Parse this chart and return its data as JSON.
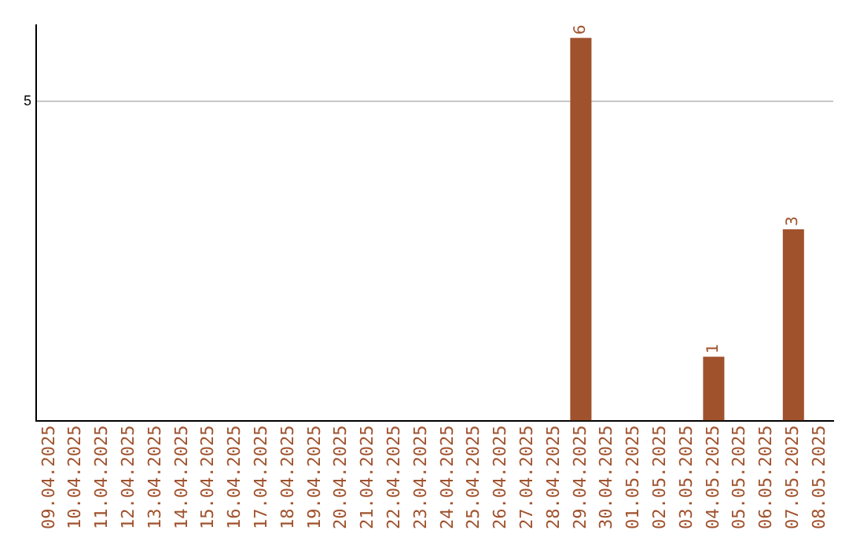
{
  "chart_data": {
    "type": "bar",
    "categories": [
      "09.04.2025",
      "10.04.2025",
      "11.04.2025",
      "12.04.2025",
      "13.04.2025",
      "14.04.2025",
      "15.04.2025",
      "16.04.2025",
      "17.04.2025",
      "18.04.2025",
      "19.04.2025",
      "20.04.2025",
      "21.04.2025",
      "22.04.2025",
      "23.04.2025",
      "24.04.2025",
      "25.04.2025",
      "26.04.2025",
      "27.04.2025",
      "28.04.2025",
      "29.04.2025",
      "30.04.2025",
      "01.05.2025",
      "02.05.2025",
      "03.05.2025",
      "04.05.2025",
      "05.05.2025",
      "06.05.2025",
      "07.05.2025",
      "08.05.2025"
    ],
    "values": [
      null,
      null,
      null,
      null,
      null,
      null,
      null,
      null,
      null,
      null,
      null,
      null,
      null,
      null,
      null,
      null,
      null,
      null,
      null,
      null,
      6,
      null,
      null,
      null,
      null,
      1,
      null,
      null,
      3,
      null
    ],
    "data_labels": true,
    "color": "#a0522d",
    "ylim": [
      0,
      6.2
    ],
    "yticks": [
      5
    ],
    "grid": "y",
    "legend": false
  }
}
